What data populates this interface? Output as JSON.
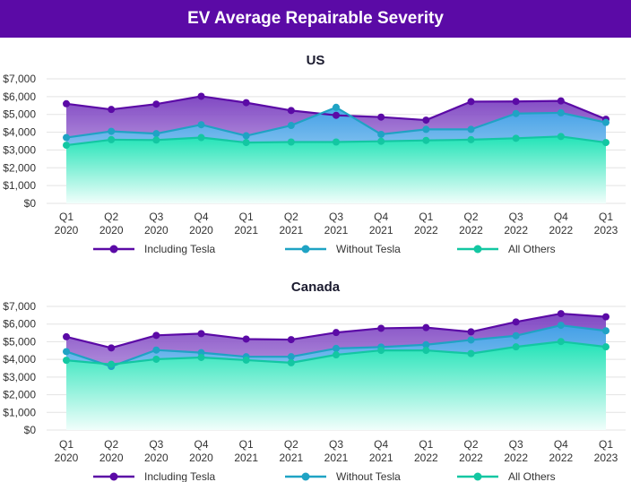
{
  "page": {
    "title": "EV Average Repairable Severity",
    "banner_color": "#5b0aa6"
  },
  "chart_data": [
    {
      "type": "area",
      "title": "US",
      "categories": [
        [
          "Q1",
          "2020"
        ],
        [
          "Q2",
          "2020"
        ],
        [
          "Q3",
          "2020"
        ],
        [
          "Q4",
          "2020"
        ],
        [
          "Q1",
          "2021"
        ],
        [
          "Q2",
          "2021"
        ],
        [
          "Q3",
          "2021"
        ],
        [
          "Q4",
          "2021"
        ],
        [
          "Q1",
          "2022"
        ],
        [
          "Q2",
          "2022"
        ],
        [
          "Q3",
          "2022"
        ],
        [
          "Q4",
          "2022"
        ],
        [
          "Q1",
          "2023"
        ]
      ],
      "ylim": [
        0,
        7000
      ],
      "yticks": [
        0,
        1000,
        2000,
        3000,
        4000,
        5000,
        6000,
        7000
      ],
      "ytick_labels": [
        "$0",
        "$1,000",
        "$2,000",
        "$3,000",
        "$4,000",
        "$5,000",
        "$6,000",
        "$7,000"
      ],
      "grid": true,
      "legend_position": "bottom",
      "series": [
        {
          "name": "Including Tesla",
          "color": "#5b0aa6",
          "fill_top": "#7a3fc0",
          "fill_bottom": "#e7daf6",
          "values": [
            5600,
            5280,
            5580,
            6020,
            5660,
            5220,
            4950,
            4850,
            4680,
            5720,
            5730,
            5760,
            4730
          ]
        },
        {
          "name": "Without Tesla",
          "color": "#1fa3c4",
          "fill_top": "#3fa3e8",
          "fill_bottom": "#d2eefa",
          "values": [
            3700,
            4050,
            3920,
            4420,
            3800,
            4380,
            5400,
            3880,
            4160,
            4160,
            5050,
            5090,
            4550
          ]
        },
        {
          "name": "All Others",
          "color": "#13c7a2",
          "fill_top": "#1ee6b4",
          "fill_bottom": "#f2fffb",
          "values": [
            3270,
            3580,
            3560,
            3700,
            3420,
            3450,
            3450,
            3490,
            3540,
            3580,
            3660,
            3760,
            3420
          ]
        }
      ]
    },
    {
      "type": "area",
      "title": "Canada",
      "categories": [
        [
          "Q1",
          "2020"
        ],
        [
          "Q2",
          "2020"
        ],
        [
          "Q3",
          "2020"
        ],
        [
          "Q4",
          "2020"
        ],
        [
          "Q1",
          "2021"
        ],
        [
          "Q2",
          "2021"
        ],
        [
          "Q3",
          "2021"
        ],
        [
          "Q4",
          "2021"
        ],
        [
          "Q1",
          "2022"
        ],
        [
          "Q2",
          "2022"
        ],
        [
          "Q3",
          "2022"
        ],
        [
          "Q4",
          "2022"
        ],
        [
          "Q1",
          "2023"
        ]
      ],
      "ylim": [
        0,
        7000
      ],
      "yticks": [
        0,
        1000,
        2000,
        3000,
        4000,
        5000,
        6000,
        7000
      ],
      "ytick_labels": [
        "$0",
        "$1,000",
        "$2,000",
        "$3,000",
        "$4,000",
        "$5,000",
        "$6,000",
        "$7,000"
      ],
      "grid": true,
      "legend_position": "bottom",
      "series": [
        {
          "name": "Including Tesla",
          "color": "#5b0aa6",
          "fill_top": "#7a3fc0",
          "fill_bottom": "#e7daf6",
          "values": [
            5280,
            4650,
            5360,
            5460,
            5150,
            5120,
            5520,
            5760,
            5800,
            5560,
            6120,
            6590,
            6410
          ]
        },
        {
          "name": "Without Tesla",
          "color": "#1fa3c4",
          "fill_top": "#3fa3e8",
          "fill_bottom": "#d2eefa",
          "values": [
            4440,
            3600,
            4530,
            4380,
            4150,
            4150,
            4620,
            4700,
            4830,
            5100,
            5340,
            5930,
            5620
          ]
        },
        {
          "name": "All Others",
          "color": "#13c7a2",
          "fill_top": "#1ee6b4",
          "fill_bottom": "#f2fffb",
          "values": [
            3950,
            3720,
            4010,
            4110,
            3960,
            3810,
            4260,
            4510,
            4510,
            4330,
            4710,
            5010,
            4710
          ]
        }
      ]
    }
  ]
}
